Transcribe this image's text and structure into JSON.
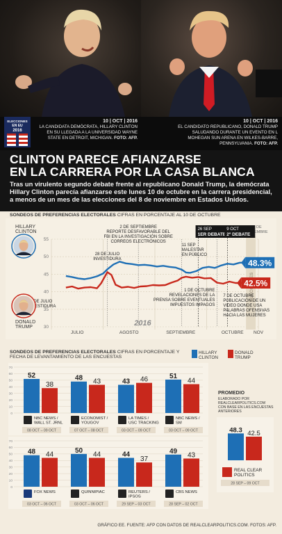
{
  "captions": {
    "left": {
      "date": "10 | OCT | 2016",
      "text": "LA CANDIDATA DEMÓCRATA, HILLARY CLINTON EN SU LLEGADA A LA UNIVERSIDAD WAYNE STATE EN DETROIT, MICHIGAN.",
      "photo_credit": "FOTO: AFP."
    },
    "right": {
      "date": "10 | OCT | 2016",
      "text": "EL CANDIDATO REPUBLICANO, DONALD TRUMP SALUDANDO DURANTE UN EVENTO EN L MOHEGAN SUN ARENA EN WILKES-BARRE, PENNSYLVANIA.",
      "photo_credit": "FOTO: AFP."
    }
  },
  "badge": {
    "line1": "ELECCIONES",
    "line2": "EN EU",
    "year": "2016"
  },
  "headline": {
    "title_line1": "CLINTON PARECE AFIANZARSE",
    "title_line2": "EN LA CARRERA POR LA CASA BLANCA",
    "lead": "Tras un virulento segundo debate frente al republicano Donald Trump, la demócrata Hillary Clinton parecía afianzarse este lunes 10 de octubre en la carrera presidencial, a menos de un mes de las elecciones del 8 de noviembre en Estados Unidos."
  },
  "colors": {
    "clinton": "#1e6fb5",
    "trump": "#c8281c",
    "dark": "#141414",
    "bg": "#f3ecdf"
  },
  "line_section": {
    "title": "SONDEOS DE PREFERENCIAS ELECTORALES",
    "subtitle": "CIFRAS EN PORCENTAJE AL 10 DE OCTUBRE"
  },
  "bar_section": {
    "title": "SONDEOS DE PREFERENCIAS ELECTORALES",
    "subtitle": "CIFRAS EN PORCENTAJE Y FECHA DE LEVANTAMIENTO DE LAS ENCUESTAS"
  },
  "candidates": {
    "clinton": "HILLARY CLINTON",
    "trump": "DONALD TRUMP",
    "clinton_l1": "HILLARY",
    "clinton_l2": "CLINTON",
    "trump_l1": "DONALD",
    "trump_l2": "TRUMP"
  },
  "promedio": {
    "title": "PROMEDIO",
    "text": "ELABORADO POR REALCLEARPOLITICS.COM CON BASE EN LAS ENCUESTAS ANTERIORES"
  },
  "footer": "GRÁFICO EE. FUENTE: AFP CON DATOS DE REALCLEARPOLITICS.COM. FOTOS: AFP.",
  "chart_data": [
    {
      "type": "line",
      "title": "SONDEOS DE PREFERENCIAS ELECTORALES",
      "year_label": "2016",
      "months": [
        "JULIO",
        "AGOSTO",
        "SEPTIEMBRE",
        "OCTUBRE",
        "NOV"
      ],
      "yticks": [
        30,
        35,
        40,
        45,
        50,
        55
      ],
      "ylim": [
        30,
        55
      ],
      "series": [
        {
          "name": "HILLARY CLINTON",
          "end_label": "48.3%",
          "values": [
            [
              7,
              44.5
            ],
            [
              10,
              44.2
            ],
            [
              13,
              43.8
            ],
            [
              16,
              43.6
            ],
            [
              19,
              43.9
            ],
            [
              22,
              44.4
            ],
            [
              25,
              45.2
            ],
            [
              27,
              46.4
            ],
            [
              30,
              47.8
            ],
            [
              33,
              48.6
            ],
            [
              36,
              48.1
            ],
            [
              39,
              47.9
            ],
            [
              42,
              47.6
            ],
            [
              45,
              47.7
            ],
            [
              48,
              47.5
            ],
            [
              51,
              47.2
            ],
            [
              54,
              47.4
            ],
            [
              57,
              47.1
            ],
            [
              60,
              46.9
            ],
            [
              63,
              46.3
            ],
            [
              65,
              45.5
            ],
            [
              67,
              45.4
            ],
            [
              70,
              45.9
            ],
            [
              73,
              46.8
            ],
            [
              76,
              47.1
            ],
            [
              79,
              46.8
            ],
            [
              82,
              47.5
            ],
            [
              85,
              48.0
            ],
            [
              88,
              47.8
            ],
            [
              91,
              48.3
            ],
            [
              100,
              48.3
            ]
          ]
        },
        {
          "name": "DONALD TRUMP",
          "end_label": "42.5%",
          "values": [
            [
              7,
              41.2
            ],
            [
              10,
              41.5
            ],
            [
              13,
              40.9
            ],
            [
              16,
              41.2
            ],
            [
              19,
              41.3
            ],
            [
              22,
              41.0
            ],
            [
              24,
              42.4
            ],
            [
              27,
              45.6
            ],
            [
              29,
              44.8
            ],
            [
              31,
              42.0
            ],
            [
              34,
              41.2
            ],
            [
              37,
              41.4
            ],
            [
              40,
              41.1
            ],
            [
              43,
              41.5
            ],
            [
              46,
              41.6
            ],
            [
              49,
              41.9
            ],
            [
              52,
              41.8
            ],
            [
              55,
              41.9
            ],
            [
              58,
              42.6
            ],
            [
              61,
              43.2
            ],
            [
              63,
              44.0
            ],
            [
              65,
              44.3
            ],
            [
              68,
              44.0
            ],
            [
              71,
              44.2
            ],
            [
              74,
              43.8
            ],
            [
              77,
              43.9
            ],
            [
              80,
              42.6
            ],
            [
              83,
              42.3
            ],
            [
              86,
              42.9
            ],
            [
              89,
              42.5
            ],
            [
              100,
              42.5
            ]
          ]
        }
      ],
      "annotations": [
        {
          "text": "20 DE JULIO INVESTIDURA"
        },
        {
          "text": "28 DE JULIO INVESTIDURA"
        },
        {
          "text": "2 DE SEPTIEMBRE REPORTE DESFAVORABLE DEL FBI EN LA INVESTIGACIÓN SOBRE CORREOS ELECTRÓNICOS"
        },
        {
          "text": "11 SEP MALESTAR EN PÚBLICO"
        },
        {
          "text": "1 DE OCTUBRE REVELACIONES DE LA PRENSA SOBRE EVENTUALES IMPUESTOS IMPAGOS"
        },
        {
          "text": "26 SEP 1ER DEBATE"
        },
        {
          "text": "9 OCT 2º DEBATE"
        },
        {
          "text": "7 DE OCTUBRE PUBLICACIÓN DE UN VIDEO DONDE USA PALABRAS OFENSIVAS HACIA LAS MUJERES"
        },
        {
          "text": "08 DE NOVIEMBRE"
        },
        {
          "text": "ELECCIONES"
        }
      ]
    },
    {
      "type": "bar",
      "title": "SONDEOS DE PREFERENCIAS ELECTORALES",
      "ylim": [
        0,
        70
      ],
      "yticks": [
        0,
        10,
        20,
        30,
        40,
        50,
        60,
        70
      ],
      "series_names": [
        "HILLARY CLINTON",
        "DONALD TRUMP"
      ],
      "polls": [
        {
          "name": "NBC NEWS / WALL ST. JRNL",
          "dates": "08 OCT – 09 OCT",
          "clinton": 52,
          "trump": 38
        },
        {
          "name": "ECONOMIST / YOUGOV",
          "dates": "07 OCT – 08 OCT",
          "clinton": 48,
          "trump": 43
        },
        {
          "name": "LA TIMES / USC TRACKING",
          "dates": "03 OCT – 09 OCT",
          "clinton": 43,
          "trump": 46
        },
        {
          "name": "NBC NEWS / SM",
          "dates": "03 OCT – 09 OCT",
          "clinton": 51,
          "trump": 44
        },
        {
          "name": "FOX NEWS",
          "dates": "03 OCT – 06 OCT",
          "clinton": 48,
          "trump": 44
        },
        {
          "name": "QUINNIPIAC",
          "dates": "03 OCT – 06 OCT",
          "clinton": 50,
          "trump": 44
        },
        {
          "name": "REUTERS / IPSOS",
          "dates": "29 SEP – 03 OCT",
          "clinton": 44,
          "trump": 37
        },
        {
          "name": "CBS NEWS",
          "dates": "28 SEP – 02 OCT",
          "clinton": 49,
          "trump": 43
        },
        {
          "name": "REAL CLEAR POLITICS",
          "dates": "28 SEP – 09 OCT",
          "clinton": 48.3,
          "trump": 42.5
        }
      ]
    }
  ]
}
